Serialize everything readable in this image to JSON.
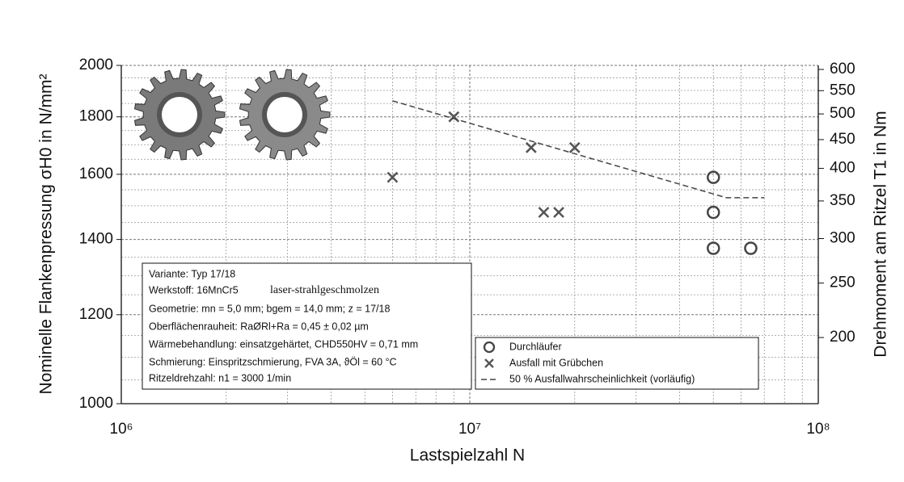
{
  "chart_data": {
    "type": "scatter",
    "xlabel": "Lastspielzahl N",
    "ylabel": "Nominelle Flankenpressung σH0 in N/mm²",
    "y2label": "Drehmoment am Ritzel T1 in Nm",
    "xscale": "log",
    "yscale": "log",
    "y2scale": "log",
    "xlim": [
      1000000,
      100000000
    ],
    "xticks": [
      {
        "value": 1000000,
        "label": "10⁶"
      },
      {
        "value": 10000000,
        "label": "10⁷"
      },
      {
        "value": 100000000,
        "label": "10⁸"
      }
    ],
    "xminorticks": [
      2000000,
      3000000,
      4000000,
      5000000,
      6000000,
      7000000,
      8000000,
      9000000,
      20000000,
      30000000,
      40000000,
      50000000,
      60000000,
      70000000,
      80000000,
      90000000
    ],
    "ylim": [
      1000,
      2000
    ],
    "yticks": [
      1000,
      1200,
      1400,
      1600,
      1800,
      2000
    ],
    "yminorticks": [
      1050,
      1100,
      1150,
      1250,
      1300,
      1350,
      1450,
      1500,
      1550,
      1650,
      1700,
      1750,
      1850,
      1900,
      1950
    ],
    "y2lim": [
      152.5,
      610
    ],
    "y2ticks": [
      200,
      250,
      300,
      350,
      400,
      450,
      500,
      550,
      600
    ],
    "grid": true,
    "series": [
      {
        "name": "Durchläufer",
        "marker": "circle",
        "color": "#444444",
        "x": [
          50000000,
          50000000,
          50000000,
          64000000
        ],
        "values": [
          1590,
          1480,
          1375,
          1375
        ]
      },
      {
        "name": "Ausfall mit Grübchen",
        "marker": "cross",
        "color": "#555555",
        "x": [
          6000000,
          9000000,
          15000000,
          20000000,
          16300000,
          18000000
        ],
        "values": [
          1590,
          1800,
          1690,
          1690,
          1480,
          1480
        ]
      },
      {
        "name": "50 % Ausfallwahrscheinlichkeit (vorläufig)",
        "marker": "dashed-line",
        "color": "#444444",
        "x": [
          6000000,
          54500000,
          70000000
        ],
        "values": [
          1860,
          1525,
          1525
        ]
      }
    ],
    "info_box": [
      "Variante: Typ 17/18",
      "Werkstoff: 16MnCr5",
      "laser-strahlgeschmolzen",
      "Geometrie: mn = 5,0 mm; bgem = 14,0 mm; z = 17/18",
      "Oberflächenrauheit: RaØRl+Ra = 0,45 ± 0,02 µm",
      "Wärmebehandlung: einsatzgehärtet, CHD550HV = 0,71 mm",
      "Schmierung: Einspritzschmierung, FVA 3A, ϑÖl = 60 °C",
      "Ritzeldrehzahl: n1 = 3000 1/min"
    ]
  }
}
